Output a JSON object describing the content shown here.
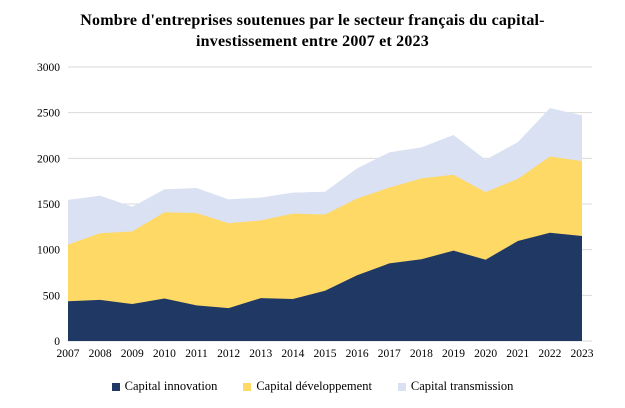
{
  "title": "Nombre d'entreprises soutenues par le secteur français du capital-investissement entre 2007 et 2023",
  "chart_data": {
    "type": "area",
    "stacked": true,
    "x": [
      2007,
      2008,
      2009,
      2010,
      2011,
      2012,
      2013,
      2014,
      2015,
      2016,
      2017,
      2018,
      2019,
      2020,
      2021,
      2022,
      2023
    ],
    "series": [
      {
        "name": "Capital innovation",
        "color": "#1F3864",
        "values": [
          435,
          450,
          405,
          465,
          390,
          360,
          470,
          460,
          550,
          720,
          850,
          895,
          990,
          890,
          1095,
          1185,
          1150
        ]
      },
      {
        "name": "Capital développement",
        "color": "#FFD966",
        "values": [
          620,
          730,
          795,
          945,
          1010,
          930,
          850,
          935,
          835,
          840,
          830,
          885,
          830,
          740,
          680,
          835,
          820
        ]
      },
      {
        "name": "Capital transmission",
        "color": "#D9E1F2",
        "values": [
          490,
          410,
          270,
          250,
          275,
          260,
          250,
          230,
          250,
          330,
          385,
          340,
          435,
          355,
          400,
          530,
          500
        ]
      }
    ],
    "totals": [
      1545,
      1590,
      1470,
      1660,
      1675,
      1550,
      1570,
      1625,
      1635,
      1890,
      2065,
      2120,
      2255,
      1985,
      2175,
      2550,
      2470
    ],
    "ylim": [
      0,
      3000
    ],
    "y_ticks": [
      0,
      500,
      1000,
      1500,
      2000,
      2500,
      3000
    ],
    "x_tick_labels": [
      "2007",
      "2008",
      "2009",
      "2010",
      "2011",
      "2012",
      "2013",
      "2014",
      "2015",
      "2016",
      "2017",
      "2018",
      "2019",
      "2020",
      "2021",
      "2022",
      "2023"
    ],
    "grid": true,
    "gridline_color": "#D9D9D9",
    "legend_position": "bottom"
  }
}
